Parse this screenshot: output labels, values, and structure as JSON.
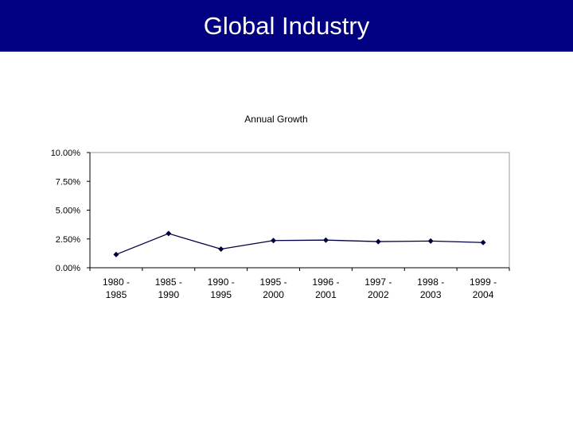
{
  "slide": {
    "title": "Global Industry"
  },
  "chart_data": {
    "type": "line",
    "title": "Annual Growth",
    "categories": [
      [
        "1980 -",
        "1985"
      ],
      [
        "1985 -",
        "1990"
      ],
      [
        "1990 -",
        "1995"
      ],
      [
        "1995 -",
        "2000"
      ],
      [
        "1996 -",
        "2001"
      ],
      [
        "1997 -",
        "2002"
      ],
      [
        "1998 -",
        "2003"
      ],
      [
        "1999 -",
        "2004"
      ]
    ],
    "values": [
      0.0115,
      0.0297,
      0.0162,
      0.0236,
      0.024,
      0.0227,
      0.0232,
      0.0219
    ],
    "yticks": [
      "0.00%",
      "2.50%",
      "5.00%",
      "7.50%",
      "10.00%"
    ],
    "ylim": [
      0,
      0.1
    ],
    "xlabel": "",
    "ylabel": "",
    "series_color": "#000040",
    "grid": false,
    "legend": "none"
  }
}
